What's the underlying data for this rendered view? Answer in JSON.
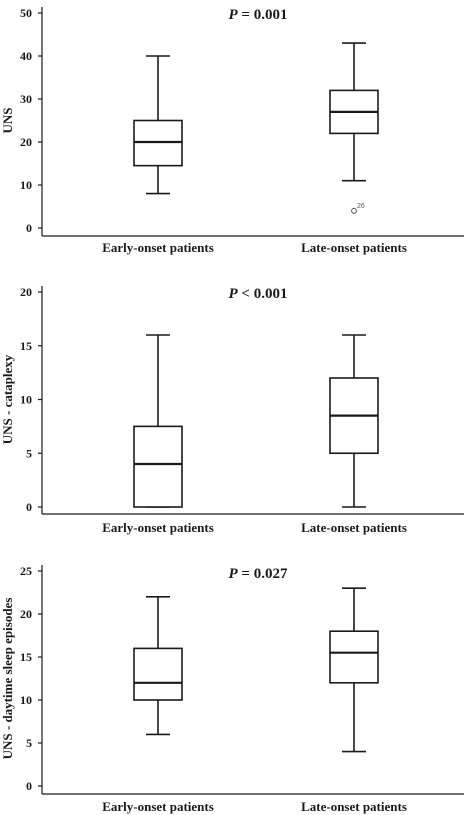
{
  "chart_data": [
    {
      "type": "boxplot",
      "p_symbol": "P",
      "p_rest": " = 0.001",
      "ylabel": "UNS",
      "ylim": [
        0,
        50
      ],
      "yticks": [
        0,
        10,
        20,
        30,
        40,
        50
      ],
      "categories": [
        "Early-onset patients",
        "Late-onset patients"
      ],
      "boxes": [
        {
          "min": 8,
          "q1": 14.5,
          "median": 20,
          "q3": 25,
          "max": 40,
          "outliers": []
        },
        {
          "min": 11,
          "q1": 22,
          "median": 27,
          "q3": 32,
          "max": 43,
          "outliers": [
            {
              "value": 4,
              "label": "26"
            }
          ]
        }
      ]
    },
    {
      "type": "boxplot",
      "p_symbol": "P",
      "p_rest": " < 0.001",
      "ylabel": "UNS - cataplexy",
      "ylim": [
        0,
        20
      ],
      "yticks": [
        0,
        5,
        10,
        15,
        20
      ],
      "categories": [
        "Early-onset patients",
        "Late-onset patients"
      ],
      "boxes": [
        {
          "min": 0,
          "q1": 0,
          "median": 4,
          "q3": 7.5,
          "max": 16,
          "outliers": []
        },
        {
          "min": 0,
          "q1": 5,
          "median": 8.5,
          "q3": 12,
          "max": 16,
          "outliers": []
        }
      ]
    },
    {
      "type": "boxplot",
      "p_symbol": "P",
      "p_rest": " = 0.027",
      "ylabel": "UNS - daytime sleep episodes",
      "ylim": [
        0,
        25
      ],
      "yticks": [
        0,
        5,
        10,
        15,
        20,
        25
      ],
      "categories": [
        "Early-onset patients",
        "Late-onset patients"
      ],
      "boxes": [
        {
          "min": 6,
          "q1": 10,
          "median": 12,
          "q3": 16,
          "max": 22,
          "outliers": []
        },
        {
          "min": 4,
          "q1": 12,
          "median": 15.5,
          "q3": 18,
          "max": 23,
          "outliers": []
        }
      ]
    }
  ]
}
